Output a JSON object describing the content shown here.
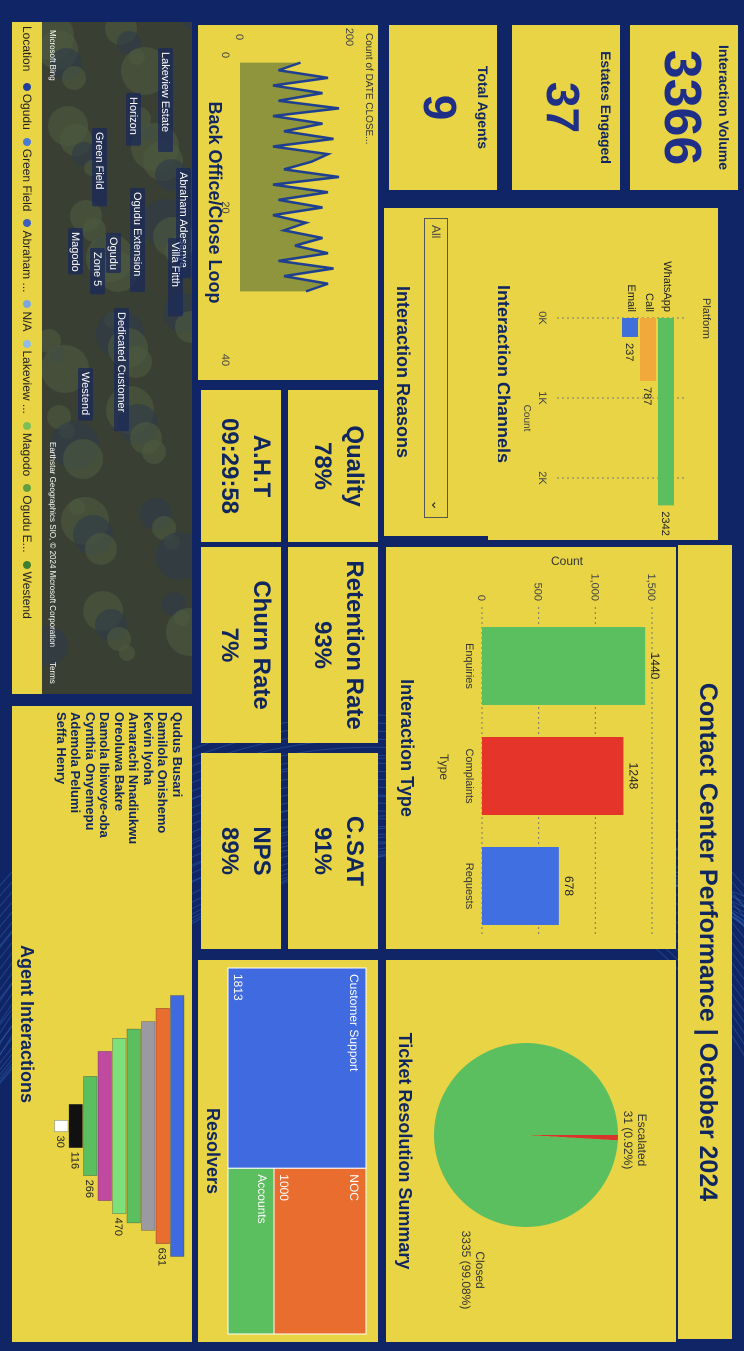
{
  "page": {
    "title": "Contact Center Performance | October 2024"
  },
  "kpis": {
    "interaction_volume": {
      "value": "3366",
      "label": "Interaction Volume"
    },
    "estates_engaged": {
      "value": "37",
      "label": "Estates Engaged"
    },
    "total_agents": {
      "value": "9",
      "label": "Total Agents"
    },
    "quality": {
      "label": "Quality",
      "value": "78%"
    },
    "aht": {
      "label": "A.H.T",
      "value": "09:29:58"
    },
    "retention_rate": {
      "label": "Retention Rate",
      "value": "93%"
    },
    "churn_rate": {
      "label": "Churn Rate",
      "value": "7%"
    },
    "csat": {
      "label": "C.SAT",
      "value": "91%"
    },
    "nps": {
      "label": "NPS",
      "value": "89%"
    }
  },
  "map": {
    "legend_title": "Location",
    "legend_items": [
      {
        "label": "Ogudu",
        "color": "#1f3f9f"
      },
      {
        "label": "Green Field",
        "color": "#4a7ad8"
      },
      {
        "label": "Abraham ...",
        "color": "#3a5fc0"
      },
      {
        "label": "N/A",
        "color": "#7aa7e0"
      },
      {
        "label": "Lakeview ...",
        "color": "#8fbde6"
      },
      {
        "label": "Magodo",
        "color": "#7bbf5a"
      },
      {
        "label": "Ogudu E...",
        "color": "#5f9f3f"
      },
      {
        "label": "Westend",
        "color": "#3f7f2f"
      }
    ],
    "place_labels": [
      "Lakeview Estate",
      "Horizon",
      "Green Field",
      "Abraham Adesanya",
      "Villa Fitth",
      "Ogudu Extension",
      "Ogudu",
      "Magodo",
      "Zone 5",
      "Dedicated Customer",
      "Westend"
    ],
    "attribution_left": "Microsoft Bing",
    "attribution_right": "Earthstar Geographics SIO, © 2024 Microsoft Corporation",
    "terms": "Terms"
  },
  "charts": {
    "back_office": {
      "title": "Back Office/Close Loop",
      "axis_title": "Count of DATE CLOSE...",
      "tick_labels": [
        "0",
        "200"
      ],
      "x_ticks": [
        "0",
        "20",
        "40"
      ],
      "chart_data": {
        "type": "area",
        "ylabel": "Count of DATE CLOSE...",
        "ylim": [
          0,
          200
        ],
        "xlim": [
          0,
          40
        ],
        "x": [
          1,
          2,
          3,
          4,
          5,
          6,
          7,
          8,
          9,
          10,
          11,
          12,
          13,
          14,
          15,
          16,
          17,
          18,
          19,
          20,
          21,
          22,
          23,
          24,
          25,
          26,
          27,
          28,
          29,
          30,
          31
        ],
        "values": [
          110,
          70,
          160,
          60,
          150,
          70,
          180,
          60,
          150,
          80,
          170,
          60,
          160,
          130,
          80,
          180,
          60,
          160,
          70,
          150,
          60,
          120,
          80,
          150,
          100,
          160,
          70,
          170,
          80,
          160,
          120
        ]
      }
    },
    "interaction_channels": {
      "title": "Interaction Channels",
      "legend_title": "Platform",
      "axis_title": "Count",
      "chart_data": {
        "type": "bar",
        "categories": [
          "WhatsApp",
          "Call",
          "Email"
        ],
        "values": [
          2342,
          787,
          237
        ],
        "colors": [
          "#5bbf5f",
          "#f2a93b",
          "#3f6fd8"
        ],
        "xlabel": "Count",
        "tick_labels": [
          "0K",
          "1K",
          "2K"
        ],
        "xlim": [
          0,
          2500
        ]
      }
    },
    "interaction_reasons": {
      "title": "Interaction Reasons",
      "selected": "All"
    },
    "interaction_type": {
      "title": "Interaction Type",
      "chart_data": {
        "type": "bar",
        "categories": [
          "Enquiries",
          "Complaints",
          "Requests"
        ],
        "values": [
          1440,
          1248,
          678
        ],
        "colors": [
          "#5bbf5f",
          "#e5352b",
          "#3f6fe0"
        ],
        "xlabel": "Type",
        "ylabel": "Count",
        "ylim": [
          0,
          1500
        ],
        "yticks": [
          "0",
          "500",
          "1,000",
          "1,500"
        ]
      }
    },
    "ticket_resolution": {
      "title": "Ticket Resolution Summary",
      "chart_data": {
        "type": "pie",
        "categories": [
          "Escalated",
          "Closed"
        ],
        "values": [
          31,
          3335
        ],
        "colors": [
          "#d9342b",
          "#5bbf5f"
        ]
      },
      "label_escalated_name": "Escalated",
      "label_escalated_value": "31 (0.92%)",
      "label_closed_name": "Closed",
      "label_closed_value": "3335 (99.08%)"
    },
    "resolvers": {
      "title": "Resolvers",
      "chart_data": {
        "type": "treemap",
        "categories": [
          "Customer Support",
          "NOC",
          "Accounts"
        ],
        "values": [
          1813,
          1000,
          500
        ],
        "colors": [
          "#3f6ae0",
          "#e86d2f",
          "#5bbf5f"
        ]
      },
      "labels": [
        "Customer Support",
        "NOC",
        "Accounts"
      ],
      "value_labels": [
        "1813",
        "1000"
      ]
    },
    "agent_interactions": {
      "title": "Agent Interactions",
      "chart_data": {
        "type": "funnel",
        "categories": [
          "Qudus Busari",
          "Damilola Onishemo",
          "Kevin Iyoha",
          "Amarachi Nnadiukwu",
          "Oreoluwa Bakre",
          "Damola Ibiwoye-oba",
          "Cynthia Onyemepu",
          "Ademola Pelumi",
          "Seffa Henry"
        ],
        "values": [
          700,
          631,
          560,
          520,
          470,
          400,
          266,
          116,
          30
        ],
        "colors": [
          "#3f6ae0",
          "#e86d2f",
          "#9a9aa0",
          "#5bbf5f",
          "#7de07a",
          "#c04aa0",
          "#5bbf5f",
          "#111111",
          "#ffffff"
        ]
      },
      "value_labels": [
        "631",
        "470",
        "266",
        "116",
        "30"
      ]
    }
  }
}
